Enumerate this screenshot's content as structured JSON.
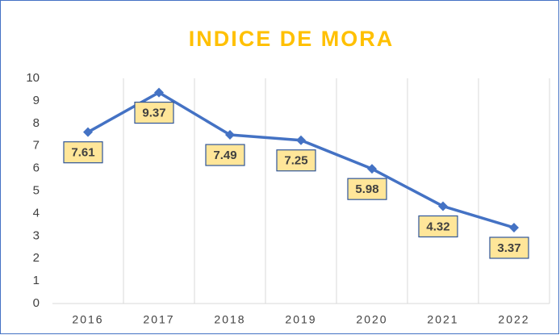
{
  "chart_data": {
    "type": "line",
    "title": "INDICE DE MORA",
    "categories": [
      "2016",
      "2017",
      "2018",
      "2019",
      "2020",
      "2021",
      "2022"
    ],
    "values": [
      7.61,
      9.37,
      7.49,
      7.25,
      5.98,
      4.32,
      3.37
    ],
    "color": "#4472c4",
    "title_color": "#ffc000",
    "label_fill": "#ffe699",
    "label_border": "#2f5597",
    "ylim": [
      0,
      10
    ],
    "yticks": [
      0,
      1,
      2,
      3,
      4,
      5,
      6,
      7,
      8,
      9,
      10
    ]
  }
}
